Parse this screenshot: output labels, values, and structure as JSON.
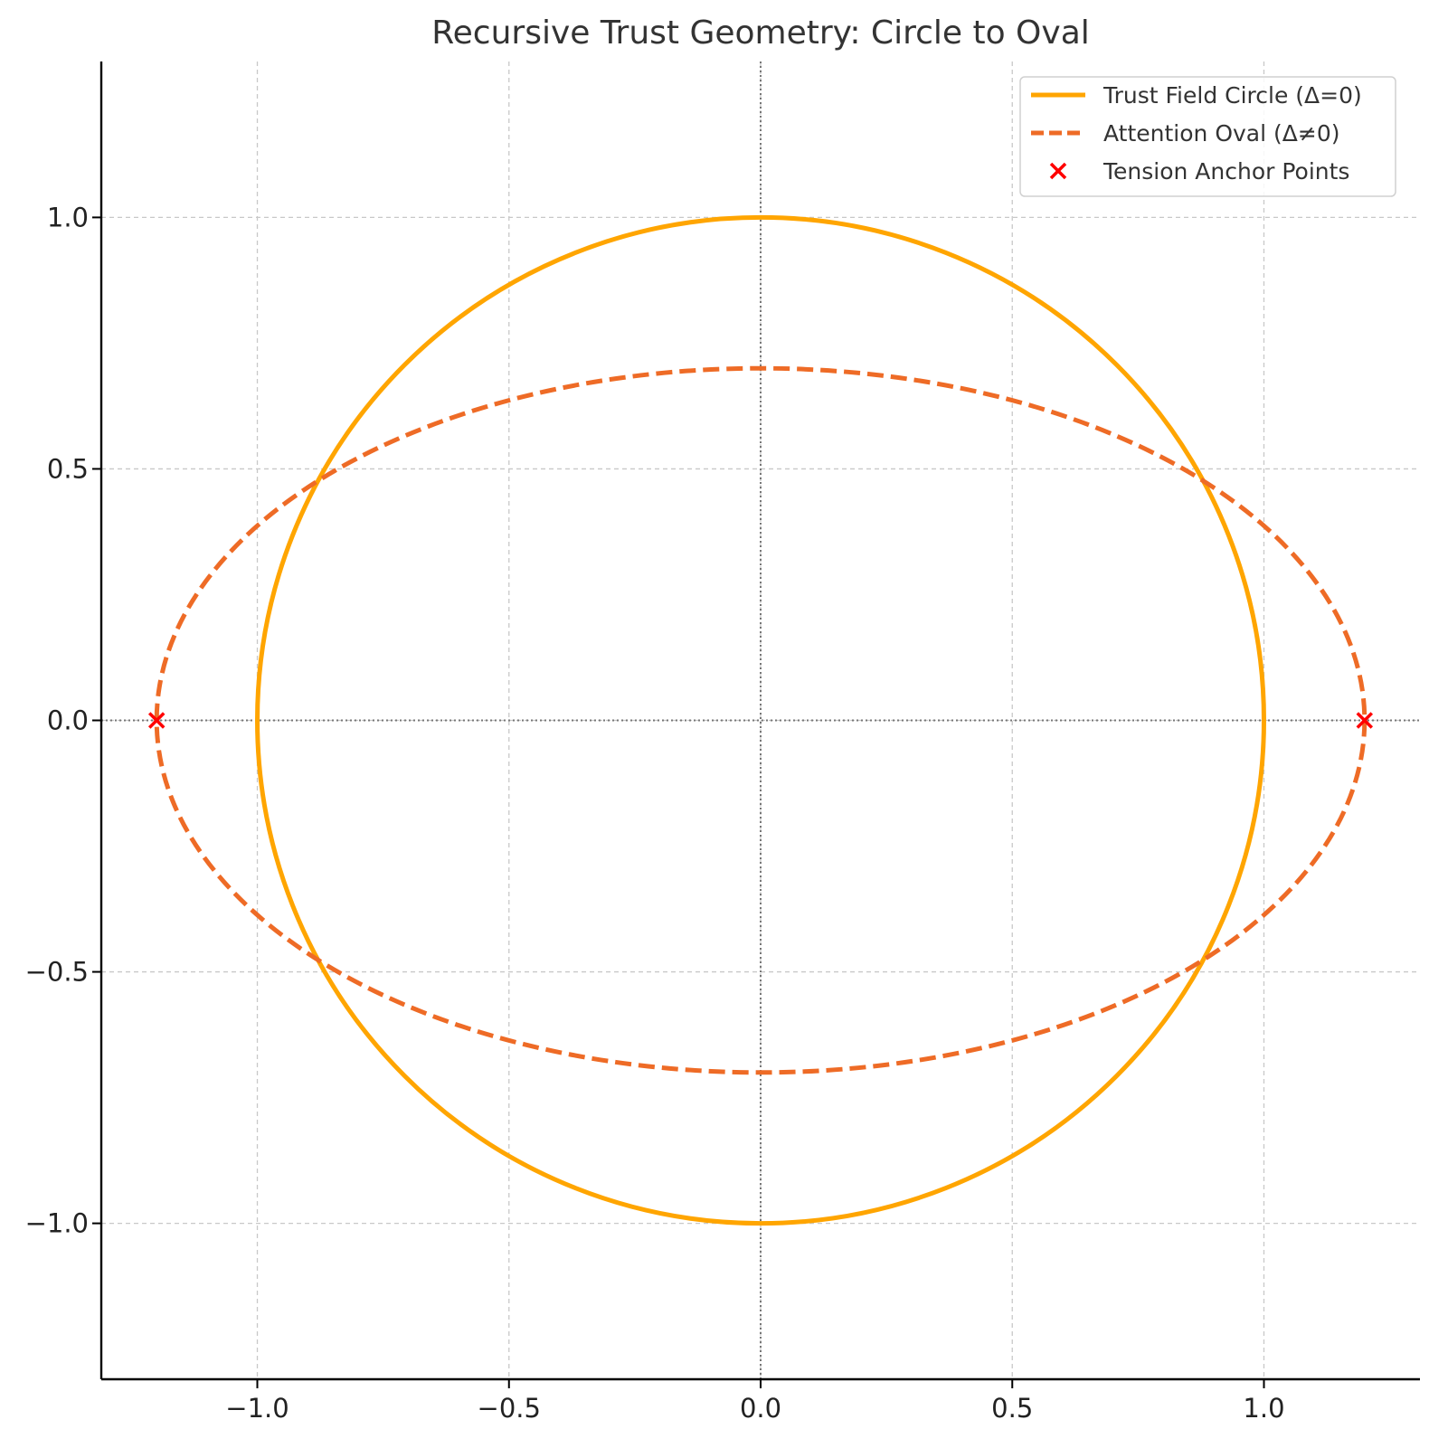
{
  "chart_data": {
    "type": "line",
    "title": "Recursive Trust Geometry: Circle to Oval",
    "xlabel": "",
    "ylabel": "",
    "xlim": [
      -1.31,
      1.31
    ],
    "ylim": [
      -1.31,
      1.31
    ],
    "xticks": [
      -1.0,
      -0.5,
      0.0,
      0.5,
      1.0
    ],
    "yticks": [
      -1.0,
      -0.5,
      0.0,
      0.5,
      1.0
    ],
    "xtick_labels": [
      "−1.0",
      "−0.5",
      "0.0",
      "0.5",
      "1.0"
    ],
    "ytick_labels": [
      "−1.0",
      "−0.5",
      "0.0",
      "0.5",
      "1.0"
    ],
    "grid": true,
    "legend_position": "top-right",
    "series": [
      {
        "name": "Trust Field Circle (Δ=0)",
        "kind": "line",
        "style": "solid",
        "color": "#FFA500",
        "shape": "ellipse",
        "center": [
          0,
          0
        ],
        "rx": 1.0,
        "ry": 1.0
      },
      {
        "name": "Attention Oval (Δ≠0)",
        "kind": "line",
        "style": "dashed",
        "color": "#EE6B26",
        "shape": "ellipse",
        "center": [
          0,
          0
        ],
        "rx": 1.2,
        "ry": 0.7
      },
      {
        "name": "Tension Anchor Points",
        "kind": "scatter",
        "marker": "x",
        "color": "#FF0000",
        "points": [
          [
            -1.2,
            0.0
          ],
          [
            1.2,
            0.0
          ]
        ]
      }
    ]
  }
}
